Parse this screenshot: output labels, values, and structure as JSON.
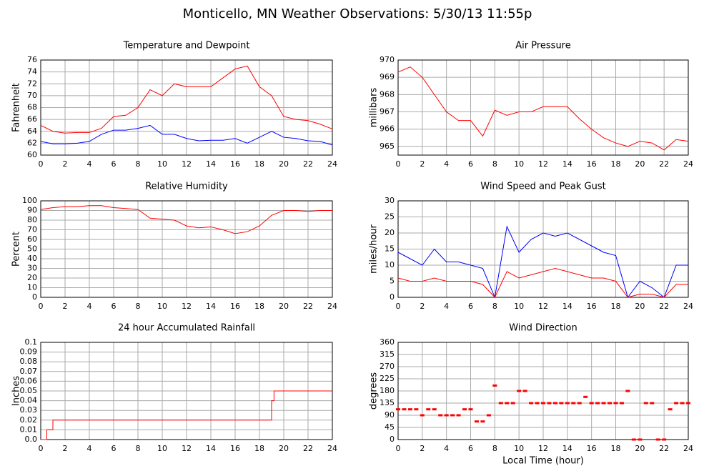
{
  "title": "Monticello, MN Weather Observations: 5/30/13 11:55p",
  "chart_data": [
    {
      "type": "line",
      "title": "Temperature and Dewpoint",
      "ylabel": "Fahrenheit",
      "x": [
        0,
        1,
        2,
        3,
        4,
        5,
        6,
        7,
        8,
        9,
        10,
        11,
        12,
        13,
        14,
        15,
        16,
        17,
        18,
        19,
        20,
        21,
        22,
        23,
        24
      ],
      "series": [
        {
          "color": "#ff0000",
          "values": [
            65,
            64,
            63.7,
            63.8,
            63.8,
            64.5,
            66.5,
            66.7,
            68,
            71,
            70,
            72,
            71.5,
            71.5,
            71.5,
            73,
            74.5,
            75,
            71.5,
            70,
            66.5,
            66,
            65.8,
            65.2,
            64.4
          ]
        },
        {
          "color": "#0000ff",
          "values": [
            62.3,
            61.9,
            61.9,
            62,
            62.3,
            63.5,
            64.2,
            64.2,
            64.5,
            65,
            63.5,
            63.5,
            62.8,
            62.4,
            62.5,
            62.5,
            62.8,
            62,
            63,
            64,
            63,
            62.8,
            62.4,
            62.3,
            61.7
          ]
        }
      ],
      "xlim": [
        0,
        24
      ],
      "xticks": [
        0,
        2,
        4,
        6,
        8,
        10,
        12,
        14,
        16,
        18,
        20,
        22,
        24
      ],
      "ylim": [
        60,
        76
      ],
      "yticks": [
        60,
        62,
        64,
        66,
        68,
        70,
        72,
        74,
        76
      ],
      "grid": true
    },
    {
      "type": "line",
      "title": "Air Pressure",
      "ylabel": "millibars",
      "x": [
        0,
        1,
        2,
        3,
        4,
        5,
        6,
        7,
        8,
        9,
        10,
        11,
        12,
        13,
        14,
        15,
        16,
        17,
        18,
        19,
        20,
        21,
        22,
        23,
        24
      ],
      "series": [
        {
          "color": "#ff0000",
          "values": [
            969.3,
            969.6,
            969,
            968,
            967,
            966.5,
            966.5,
            965.6,
            967.1,
            966.8,
            967,
            967,
            967.3,
            967.3,
            967.3,
            966.6,
            966,
            965.5,
            965.2,
            965,
            965.3,
            965.2,
            964.8,
            965.4,
            965.3
          ]
        }
      ],
      "xlim": [
        0,
        24
      ],
      "xticks": [
        0,
        2,
        4,
        6,
        8,
        10,
        12,
        14,
        16,
        18,
        20,
        22,
        24
      ],
      "ylim": [
        964.5,
        970
      ],
      "yticks": [
        965,
        966,
        967,
        968,
        969,
        970
      ],
      "grid": true
    },
    {
      "type": "line",
      "title": "Relative Humidity",
      "ylabel": "Percent",
      "x": [
        0,
        1,
        2,
        3,
        4,
        5,
        6,
        7,
        8,
        9,
        10,
        11,
        12,
        13,
        14,
        15,
        16,
        17,
        18,
        19,
        20,
        21,
        22,
        23,
        24
      ],
      "series": [
        {
          "color": "#ff0000",
          "values": [
            91,
            93,
            94,
            94,
            95,
            95,
            93,
            92,
            91,
            82,
            81,
            80,
            74,
            72,
            73,
            70,
            66,
            68,
            74,
            85,
            90,
            90,
            89,
            90,
            90
          ]
        }
      ],
      "xlim": [
        0,
        24
      ],
      "xticks": [
        0,
        2,
        4,
        6,
        8,
        10,
        12,
        14,
        16,
        18,
        20,
        22,
        24
      ],
      "ylim": [
        0,
        100
      ],
      "yticks": [
        0,
        10,
        20,
        30,
        40,
        50,
        60,
        70,
        80,
        90,
        100
      ],
      "grid": true
    },
    {
      "type": "line",
      "title": "Wind Speed and Peak Gust",
      "ylabel": "miles/hour",
      "x": [
        0,
        1,
        2,
        3,
        4,
        5,
        6,
        7,
        8,
        9,
        10,
        11,
        12,
        13,
        14,
        15,
        16,
        17,
        18,
        19,
        20,
        21,
        22,
        23,
        24
      ],
      "series": [
        {
          "color": "#0000ff",
          "values": [
            14,
            12,
            10,
            15,
            11,
            11,
            10,
            9,
            0,
            22,
            14,
            18,
            20,
            19,
            20,
            18,
            16,
            14,
            13,
            0,
            5,
            3,
            0,
            10,
            10
          ]
        },
        {
          "color": "#ff0000",
          "values": [
            6,
            5,
            5,
            6,
            5,
            5,
            5,
            4,
            0,
            8,
            6,
            7,
            8,
            9,
            8,
            7,
            6,
            6,
            5,
            0,
            1,
            1,
            0,
            4,
            4
          ]
        }
      ],
      "xlim": [
        0,
        24
      ],
      "xticks": [
        0,
        2,
        4,
        6,
        8,
        10,
        12,
        14,
        16,
        18,
        20,
        22,
        24
      ],
      "ylim": [
        0,
        30
      ],
      "yticks": [
        0,
        5,
        10,
        15,
        20,
        25,
        30
      ],
      "grid": true
    },
    {
      "type": "line",
      "title": "24 hour Accumulated Rainfall",
      "ylabel": "Inches",
      "x": [
        0,
        0.5,
        0.5,
        1,
        1,
        19,
        19,
        19.2,
        19.2,
        24
      ],
      "series": [
        {
          "color": "#ff0000",
          "values": [
            0,
            0,
            0.01,
            0.01,
            0.02,
            0.02,
            0.04,
            0.04,
            0.05,
            0.05
          ]
        }
      ],
      "xlim": [
        0,
        24
      ],
      "xticks": [
        0,
        2,
        4,
        6,
        8,
        10,
        12,
        14,
        16,
        18,
        20,
        22,
        24
      ],
      "ylim": [
        0,
        0.1
      ],
      "yticks": [
        {
          "value": 0,
          "label": "0.0"
        },
        0.01,
        0.02,
        0.03,
        0.04,
        0.05,
        0.06,
        0.07,
        0.08,
        0.09,
        0.1
      ],
      "grid": true
    },
    {
      "type": "scatter",
      "title": "Wind Direction",
      "ylabel": "degrees",
      "xlabel": "Local Time (hour)",
      "x": [
        0,
        0.5,
        1,
        1.5,
        2,
        2.5,
        3,
        3.5,
        4,
        4.5,
        5,
        5.5,
        6,
        6.5,
        7,
        7.5,
        8,
        8.5,
        9,
        9.5,
        10,
        10.5,
        11,
        11.5,
        12,
        12.5,
        13,
        13.5,
        14,
        14.5,
        15,
        15.5,
        16,
        16.5,
        17,
        17.5,
        18,
        18.5,
        19,
        19.5,
        20,
        20.5,
        21,
        21.5,
        22,
        22.5,
        23,
        23.5,
        24
      ],
      "series": [
        {
          "color": "#ff0000",
          "values": [
            112,
            112,
            112,
            112,
            90,
            112,
            112,
            90,
            90,
            90,
            90,
            112,
            112,
            67,
            67,
            90,
            200,
            135,
            135,
            135,
            180,
            180,
            135,
            135,
            135,
            135,
            135,
            135,
            135,
            135,
            135,
            158,
            135,
            135,
            135,
            135,
            135,
            135,
            180,
            0,
            0,
            135,
            135,
            0,
            0,
            112,
            135,
            135,
            135
          ]
        }
      ],
      "xlim": [
        0,
        24
      ],
      "xticks": [
        0,
        2,
        4,
        6,
        8,
        10,
        12,
        14,
        16,
        18,
        20,
        22,
        24
      ],
      "ylim": [
        0,
        360
      ],
      "yticks": [
        0,
        45,
        90,
        135,
        180,
        225,
        270,
        315,
        360
      ],
      "grid": true
    }
  ]
}
